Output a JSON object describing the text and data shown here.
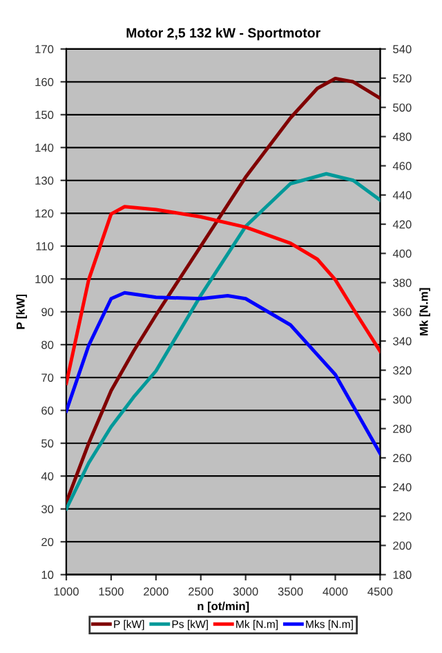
{
  "chart_data": {
    "type": "line",
    "title": "Motor 2,5 132 kW - Sportmotor",
    "xlabel": "n [ot/min]",
    "ylabel": "P [kW]",
    "y2label": "Mk [N.m]",
    "x": [
      1000,
      1250,
      1500,
      1650,
      1750,
      2000,
      2500,
      2800,
      3000,
      3500,
      3800,
      3900,
      4000,
      4200,
      4250,
      4500
    ],
    "series": [
      {
        "name": "P [kW]",
        "color": "#800000",
        "values": [
          32,
          50,
          66,
          null,
          78,
          89,
          110,
          null,
          131,
          149,
          158,
          null,
          161,
          160,
          null,
          155
        ]
      },
      {
        "name": "Ps [kW]",
        "color": "#009999",
        "values": [
          30,
          44,
          55,
          null,
          64,
          72,
          95,
          null,
          116,
          129,
          null,
          132,
          null,
          130,
          null,
          124
        ]
      },
      {
        "name": "Mk [N.m]",
        "color": "#ff0000",
        "axis": "y2",
        "values": [
          311,
          382,
          427,
          432,
          null,
          430,
          425,
          null,
          418,
          407,
          396,
          null,
          382,
          362,
          null,
          333
        ]
      },
      {
        "name": "Mks [N.m]",
        "color": "#0000ff",
        "axis": "y2",
        "values": [
          292,
          337,
          369,
          373,
          null,
          370,
          369,
          371,
          369,
          351,
          null,
          null,
          317,
          null,
          290,
          263
        ]
      }
    ],
    "xlim": [
      1000,
      4500
    ],
    "xticks": [
      1000,
      1500,
      2000,
      2500,
      3000,
      3500,
      4000,
      4500
    ],
    "ylim": [
      10,
      170
    ],
    "yticks": [
      10,
      20,
      30,
      40,
      50,
      60,
      70,
      80,
      90,
      100,
      110,
      120,
      130,
      140,
      150,
      160,
      170
    ],
    "y2lim": [
      180,
      540
    ],
    "y2ticks": [
      180,
      200,
      220,
      240,
      260,
      280,
      300,
      320,
      340,
      360,
      380,
      400,
      420,
      440,
      460,
      480,
      500,
      520,
      540
    ],
    "grid": "y",
    "legend": "bottom",
    "marker": "none",
    "line_style": "solid"
  }
}
